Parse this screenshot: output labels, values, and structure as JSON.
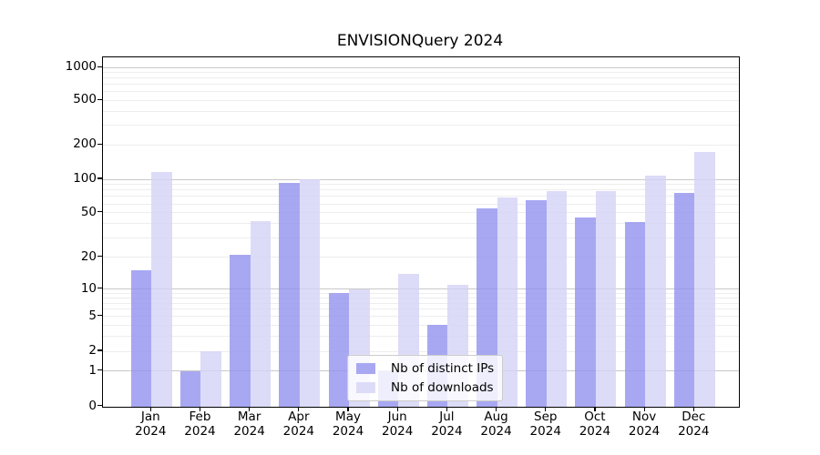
{
  "chart_data": {
    "type": "bar",
    "title": "ENVISIONQuery 2024",
    "x_categories": [
      "Jan",
      "Feb",
      "Mar",
      "Apr",
      "May",
      "Jun",
      "Jul",
      "Aug",
      "Sep",
      "Oct",
      "Nov",
      "Dec"
    ],
    "x_year_suffix": "2024",
    "series": [
      {
        "name": "Nb of distinct IPs",
        "color": "rgba(146,146,239,0.8)",
        "swatch_color": "#a8a8f2",
        "values": [
          15,
          1,
          21,
          92,
          9,
          1,
          4,
          55,
          65,
          45,
          41,
          75
        ]
      },
      {
        "name": "Nb of downloads",
        "color": "rgba(211,211,246,0.8)",
        "swatch_color": "#dcdcf8",
        "values": [
          115,
          2,
          42,
          100,
          10,
          14,
          11,
          69,
          78,
          78,
          107,
          175
        ]
      }
    ],
    "y_axis": {
      "scale": "symlog",
      "ticks": [
        0,
        1,
        2,
        5,
        10,
        20,
        50,
        100,
        200,
        500,
        1000
      ],
      "major_gridline_values": [
        1,
        10,
        100,
        1000
      ],
      "minor_gridline_values": [
        2,
        3,
        4,
        5,
        6,
        7,
        8,
        9,
        20,
        30,
        40,
        50,
        60,
        70,
        80,
        90,
        200,
        300,
        400,
        500,
        600,
        700,
        800,
        900
      ],
      "range_top": 1400
    },
    "legend": {
      "position": "lower-center",
      "entries": [
        "Nb of distinct IPs",
        "Nb of downloads"
      ]
    },
    "grid": {
      "major_color": "#c9c9c9",
      "minor_color": "#ededed"
    }
  }
}
